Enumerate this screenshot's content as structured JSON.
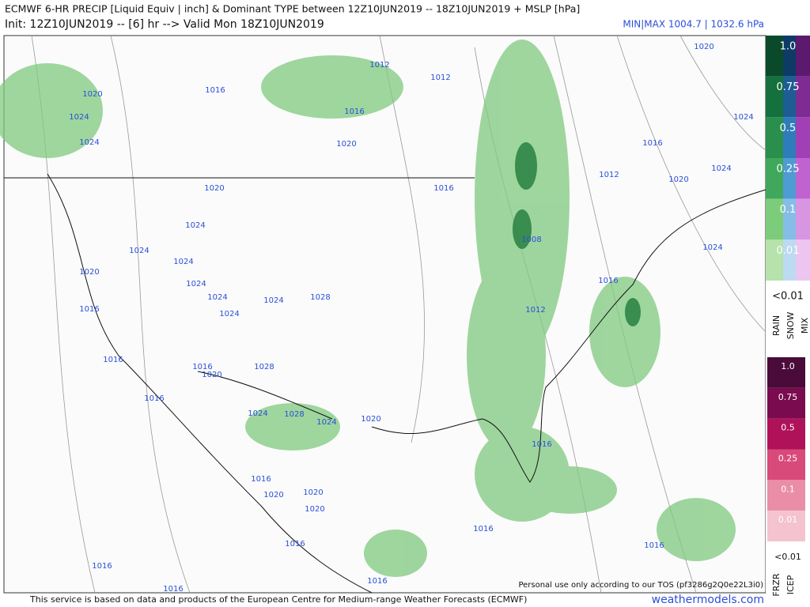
{
  "header": {
    "line1": "ECMWF 6-HR PRECIP [Liquid Equiv | inch] & Dominant TYPE between 12Z10JUN2019 -- 18Z10JUN2019 + MSLP [hPa]",
    "line2": "Init: 12Z10JUN2019 -- [6] hr --> Valid Mon 18Z10JUN2019",
    "minmax": "MIN|MAX 1004.7 | 1032.6 hPa"
  },
  "map": {
    "isobar_labels": [
      "1020",
      "1024",
      "1024",
      "1016",
      "1012",
      "1012",
      "1016",
      "1020",
      "1020",
      "1024",
      "1016",
      "1012",
      "1024",
      "1020",
      "1024",
      "1016",
      "1020",
      "1024",
      "1024",
      "1024",
      "1020",
      "1024",
      "1024",
      "1024",
      "1028",
      "1024",
      "1016",
      "1008",
      "1016",
      "1012",
      "1016",
      "1016",
      "1028",
      "1020",
      "1016",
      "1024",
      "1028",
      "1024",
      "1020",
      "1016",
      "1016",
      "1020",
      "1020",
      "1020",
      "1016",
      "1016",
      "1016",
      "1016",
      "1016",
      "1016"
    ],
    "tos_note": "Personal use only according to our TOS (pf3286g2Q0e22L3i0)"
  },
  "legend": {
    "rain_scale": [
      "1.0",
      "0.75",
      "0.5",
      "0.25",
      "0.1",
      "0.01"
    ],
    "rain_min": "<0.01",
    "rain_types": [
      "RAIN",
      "SNOW",
      "MIX"
    ],
    "ice_scale": [
      "1.0",
      "0.75",
      "0.5",
      "0.25",
      "0.1",
      "0.01"
    ],
    "ice_min": "<0.01",
    "ice_types": [
      "FRZR",
      "ICEP"
    ]
  },
  "footer": {
    "credit": "This service is based on data and products of the European Centre for Medium-range Weather Forecasts (ECMWF)",
    "site": "weathermodels.com"
  }
}
